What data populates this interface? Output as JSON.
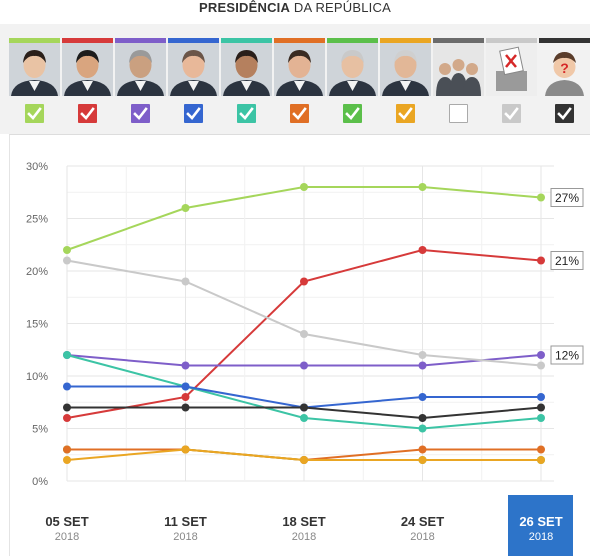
{
  "header": {
    "title_bold": "PRESIDÊNCIA",
    "title_rest": "DA REPÚBLICA"
  },
  "candidates": [
    {
      "color": "#a5d65b",
      "checked": true
    },
    {
      "color": "#d63a3a",
      "checked": true
    },
    {
      "color": "#7e5ec9",
      "checked": true
    },
    {
      "color": "#3566d0",
      "checked": true
    },
    {
      "color": "#3cc4a5",
      "checked": true
    },
    {
      "color": "#e06f25",
      "checked": true
    },
    {
      "color": "#5bbf4a",
      "checked": true
    },
    {
      "color": "#eaa623",
      "checked": true
    },
    {
      "color": "#6b6b6b",
      "checked": false,
      "icon": "group-icon"
    },
    {
      "color": "#c9c9c9",
      "checked": true,
      "icon": "ballot-box-icon"
    },
    {
      "color": "#333333",
      "checked": true,
      "icon": "undecided-person-icon"
    }
  ],
  "chart_data": {
    "type": "line",
    "x": [
      "05 SET",
      "11 SET",
      "18 SET",
      "24 SET",
      "26 SET"
    ],
    "x_year": [
      "2018",
      "2018",
      "2018",
      "2018",
      "2018"
    ],
    "highlighted_index": 4,
    "ylim": [
      0,
      30
    ],
    "yticks": [
      "0%",
      "5%",
      "10%",
      "15%",
      "20%",
      "25%",
      "30%"
    ],
    "grid": true,
    "series": [
      {
        "color": "#a5d65b",
        "values": [
          22,
          26,
          28,
          28,
          27
        ],
        "end_label": "27%"
      },
      {
        "color": "#d63a3a",
        "values": [
          6,
          8,
          19,
          22,
          21
        ],
        "end_label": "21%"
      },
      {
        "color": "#7e5ec9",
        "values": [
          12,
          11,
          11,
          11,
          12
        ],
        "end_label": "12%"
      },
      {
        "color": "#c9c9c9",
        "values": [
          21,
          19,
          14,
          12,
          11
        ]
      },
      {
        "color": "#3cc4a5",
        "values": [
          12,
          9,
          6,
          5,
          6
        ]
      },
      {
        "color": "#3566d0",
        "values": [
          9,
          9,
          7,
          8,
          8
        ]
      },
      {
        "color": "#333333",
        "values": [
          7,
          7,
          7,
          6,
          7
        ]
      },
      {
        "color": "#5bbf4a",
        "values": [
          3,
          3,
          2,
          2,
          2
        ]
      },
      {
        "color": "#e06f25",
        "values": [
          3,
          3,
          2,
          3,
          3
        ]
      },
      {
        "color": "#eaa623",
        "values": [
          2,
          3,
          2,
          2,
          2
        ]
      }
    ]
  }
}
